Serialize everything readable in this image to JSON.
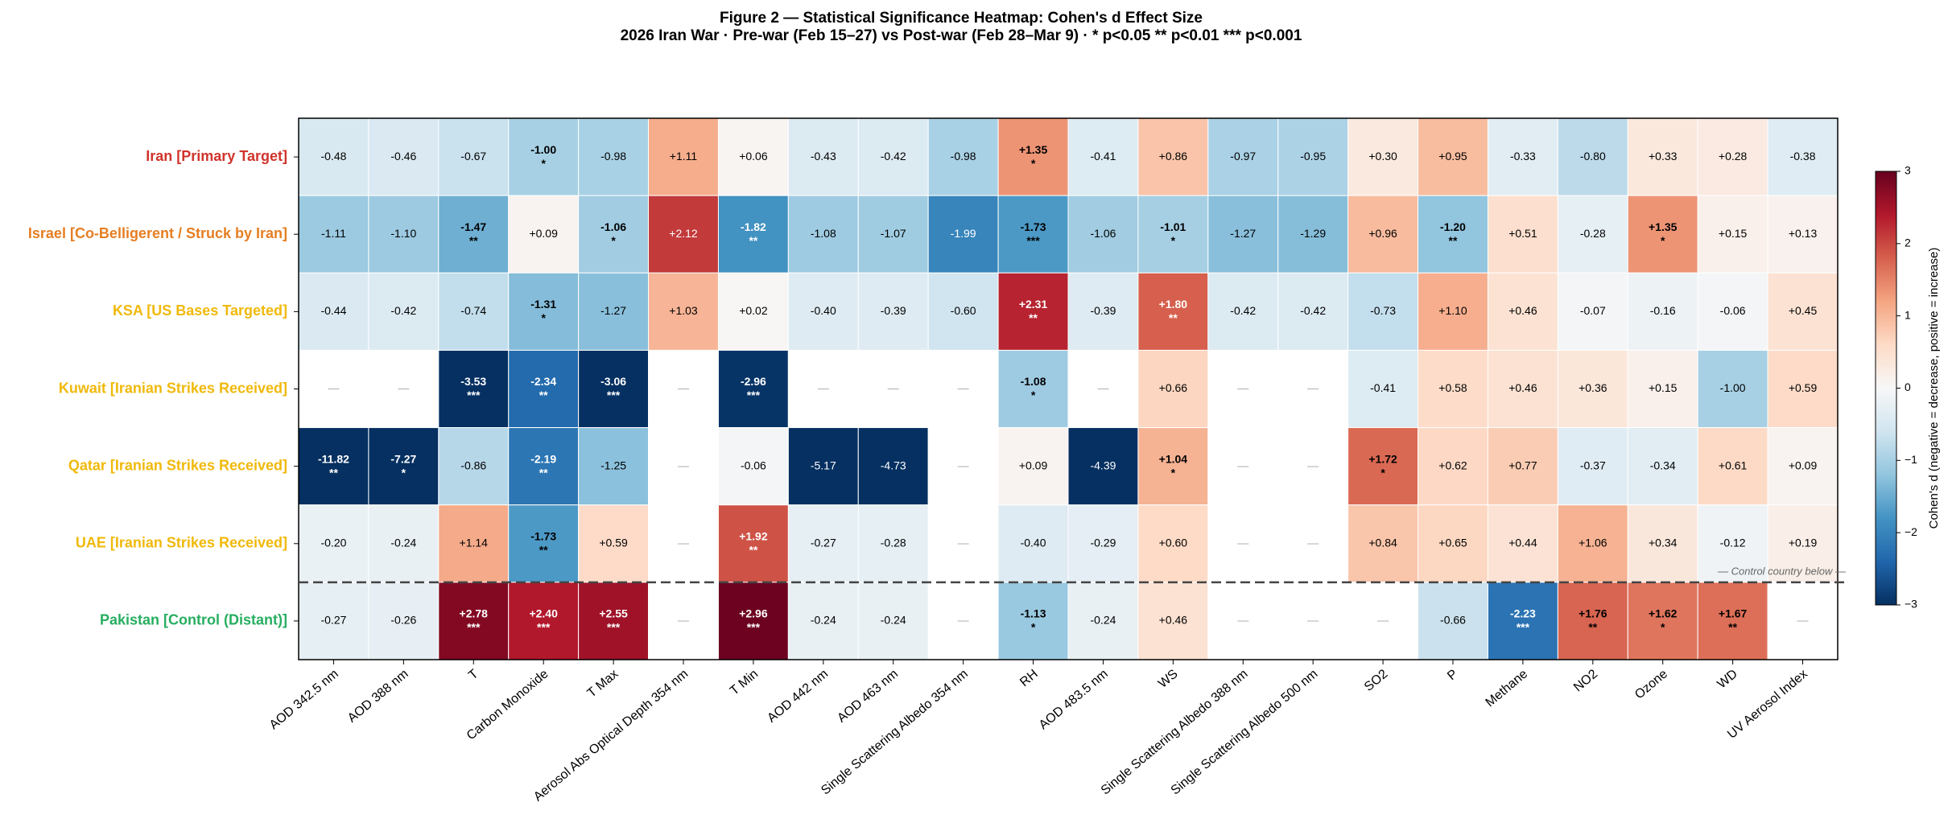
{
  "chart_data": {
    "type": "heatmap",
    "title": "Figure 2 — Statistical Significance Heatmap: Cohen's d Effect Size",
    "subtitle": "2026 Iran War · Pre-war (Feb 15–27) vs Post-war (Feb 28–Mar 9) · * p<0.05  ** p<0.01  *** p<0.001",
    "rows": [
      {
        "label": "Iran  [Primary Target]",
        "color": "#d0342c"
      },
      {
        "label": "Israel  [Co-Belligerent / Struck by Iran]",
        "color": "#e67e22"
      },
      {
        "label": "KSA  [US Bases Targeted]",
        "color": "#f0b90b"
      },
      {
        "label": "Kuwait  [Iranian Strikes Received]",
        "color": "#f0b90b"
      },
      {
        "label": "Qatar  [Iranian Strikes Received]",
        "color": "#f0b90b"
      },
      {
        "label": "UAE  [Iranian Strikes Received]",
        "color": "#f0b90b"
      },
      {
        "label": "Pakistan  [Control (Distant)]",
        "color": "#27ae60"
      }
    ],
    "categories": [
      "AOD 342.5 nm",
      "AOD 388 nm",
      "T",
      "Carbon Monoxide",
      "T Max",
      "Aerosol Abs Optical Depth 354 nm",
      "T Min",
      "AOD 442 nm",
      "AOD 463 nm",
      "Single Scattering Albedo 354 nm",
      "RH",
      "AOD 483.5 nm",
      "WS",
      "Single Scattering Albedo 388 nm",
      "Single Scattering Albedo 500 nm",
      "SO2",
      "P",
      "Methane",
      "NO2",
      "Ozone",
      "WD",
      "UV Aerosol Index"
    ],
    "values": [
      [
        -0.48,
        -0.46,
        -0.67,
        -1.0,
        -0.98,
        1.11,
        0.06,
        -0.43,
        -0.42,
        -0.98,
        1.35,
        -0.41,
        0.86,
        -0.97,
        -0.95,
        0.3,
        0.95,
        -0.33,
        -0.8,
        0.33,
        0.28,
        -0.38
      ],
      [
        -1.11,
        -1.1,
        -1.47,
        0.09,
        -1.06,
        2.12,
        -1.82,
        -1.08,
        -1.07,
        -1.99,
        -1.73,
        -1.06,
        -1.01,
        -1.27,
        -1.29,
        0.96,
        -1.2,
        0.51,
        -0.28,
        1.35,
        0.15,
        0.13
      ],
      [
        -0.44,
        -0.42,
        -0.74,
        -1.31,
        -1.27,
        1.03,
        0.02,
        -0.4,
        -0.39,
        -0.6,
        2.31,
        -0.39,
        1.8,
        -0.42,
        -0.42,
        -0.73,
        1.1,
        0.46,
        -0.07,
        -0.16,
        -0.06,
        0.45
      ],
      [
        null,
        null,
        -3.53,
        -2.34,
        -3.06,
        null,
        -2.96,
        null,
        null,
        null,
        -1.08,
        null,
        0.66,
        null,
        null,
        -0.41,
        0.58,
        0.46,
        0.36,
        0.15,
        -1.0,
        0.59
      ],
      [
        -11.82,
        -7.27,
        -0.86,
        -2.19,
        -1.25,
        null,
        -0.06,
        -5.17,
        -4.73,
        null,
        0.09,
        -4.39,
        1.04,
        null,
        null,
        1.72,
        0.62,
        0.77,
        -0.37,
        -0.34,
        0.61,
        0.09
      ],
      [
        -0.2,
        -0.24,
        1.14,
        -1.73,
        0.59,
        null,
        1.92,
        -0.27,
        -0.28,
        null,
        -0.4,
        -0.29,
        0.6,
        null,
        null,
        0.84,
        0.65,
        0.44,
        1.06,
        0.34,
        -0.12,
        0.19
      ],
      [
        -0.27,
        -0.26,
        2.78,
        2.4,
        2.55,
        null,
        2.96,
        -0.24,
        -0.24,
        null,
        -1.13,
        -0.24,
        0.46,
        null,
        null,
        null,
        -0.66,
        -2.23,
        1.76,
        1.62,
        1.67,
        null
      ]
    ],
    "value_labels": [
      [
        "-0.48",
        "-0.46",
        "-0.67",
        "-1.00",
        "-0.98",
        "+1.11",
        "+0.06",
        "-0.43",
        "-0.42",
        "-0.98",
        "+1.35",
        "-0.41",
        "+0.86",
        "-0.97",
        "-0.95",
        "+0.30",
        "+0.95",
        "-0.33",
        "-0.80",
        "+0.33",
        "+0.28",
        "-0.38"
      ],
      [
        "-1.11",
        "-1.10",
        "-1.47",
        "+0.09",
        "-1.06",
        "+2.12",
        "-1.82",
        "-1.08",
        "-1.07",
        "-1.99",
        "-1.73",
        "-1.06",
        "-1.01",
        "-1.27",
        "-1.29",
        "+0.96",
        "-1.20",
        "+0.51",
        "-0.28",
        "+1.35",
        "+0.15",
        "+0.13"
      ],
      [
        "-0.44",
        "-0.42",
        "-0.74",
        "-1.31",
        "-1.27",
        "+1.03",
        "+0.02",
        "-0.40",
        "-0.39",
        "-0.60",
        "+2.31",
        "-0.39",
        "+1.80",
        "-0.42",
        "-0.42",
        "-0.73",
        "+1.10",
        "+0.46",
        "-0.07",
        "-0.16",
        "-0.06",
        "+0.45"
      ],
      [
        "—",
        "—",
        "-3.53",
        "-2.34",
        "-3.06",
        "—",
        "-2.96",
        "—",
        "—",
        "—",
        "-1.08",
        "—",
        "+0.66",
        "—",
        "—",
        "-0.41",
        "+0.58",
        "+0.46",
        "+0.36",
        "+0.15",
        "-1.00",
        "+0.59"
      ],
      [
        "-11.82",
        "-7.27",
        "-0.86",
        "-2.19",
        "-1.25",
        "—",
        "-0.06",
        "-5.17",
        "-4.73",
        "—",
        "+0.09",
        "-4.39",
        "+1.04",
        "—",
        "—",
        "+1.72",
        "+0.62",
        "+0.77",
        "-0.37",
        "-0.34",
        "+0.61",
        "+0.09"
      ],
      [
        "-0.20",
        "-0.24",
        "+1.14",
        "-1.73",
        "+0.59",
        "—",
        "+1.92",
        "-0.27",
        "-0.28",
        "—",
        "-0.40",
        "-0.29",
        "+0.60",
        "—",
        "—",
        "+0.84",
        "+0.65",
        "+0.44",
        "+1.06",
        "+0.34",
        "-0.12",
        "+0.19"
      ],
      [
        "-0.27",
        "-0.26",
        "+2.78",
        "+2.40",
        "+2.55",
        "—",
        "+2.96",
        "-0.24",
        "-0.24",
        "—",
        "-1.13",
        "-0.24",
        "+0.46",
        "—",
        "—",
        "—",
        "-0.66",
        "-2.23",
        "+1.76",
        "+1.62",
        "+1.67",
        "—"
      ]
    ],
    "significance": [
      [
        null,
        null,
        null,
        "*",
        null,
        null,
        null,
        null,
        null,
        null,
        "*",
        null,
        null,
        null,
        null,
        null,
        null,
        null,
        null,
        null,
        null,
        null
      ],
      [
        null,
        null,
        "**",
        null,
        "*",
        null,
        "**",
        null,
        null,
        null,
        "***",
        null,
        "*",
        null,
        null,
        null,
        "**",
        null,
        null,
        "*",
        null,
        null
      ],
      [
        null,
        null,
        null,
        "*",
        null,
        null,
        null,
        null,
        null,
        null,
        "**",
        null,
        "**",
        null,
        null,
        null,
        null,
        null,
        null,
        null,
        null,
        null
      ],
      [
        null,
        null,
        "***",
        "**",
        "***",
        null,
        "***",
        null,
        null,
        null,
        "*",
        null,
        null,
        null,
        null,
        null,
        null,
        null,
        null,
        null,
        null,
        null
      ],
      [
        "**",
        "*",
        null,
        "**",
        null,
        null,
        null,
        null,
        null,
        null,
        null,
        null,
        "*",
        null,
        null,
        "*",
        null,
        null,
        null,
        null,
        null,
        null
      ],
      [
        null,
        null,
        null,
        "**",
        null,
        null,
        "**",
        null,
        null,
        null,
        null,
        null,
        null,
        null,
        null,
        null,
        null,
        null,
        null,
        null,
        null,
        null
      ],
      [
        null,
        null,
        "***",
        "***",
        "***",
        null,
        "***",
        null,
        null,
        null,
        "*",
        null,
        null,
        null,
        null,
        null,
        null,
        "***",
        "**",
        "*",
        "**",
        null
      ]
    ],
    "colormap": "RdBu_r",
    "zlim": [
      -3,
      3
    ],
    "zticks": [
      {
        "value": -3,
        "label": "−3"
      },
      {
        "value": -2,
        "label": "−2"
      },
      {
        "value": -1,
        "label": "−1"
      },
      0,
      1,
      2,
      3
    ],
    "colorbar_label": "Cohen's d  (negative = decrease, positive = increase)",
    "control_note": "— Control country below —"
  }
}
